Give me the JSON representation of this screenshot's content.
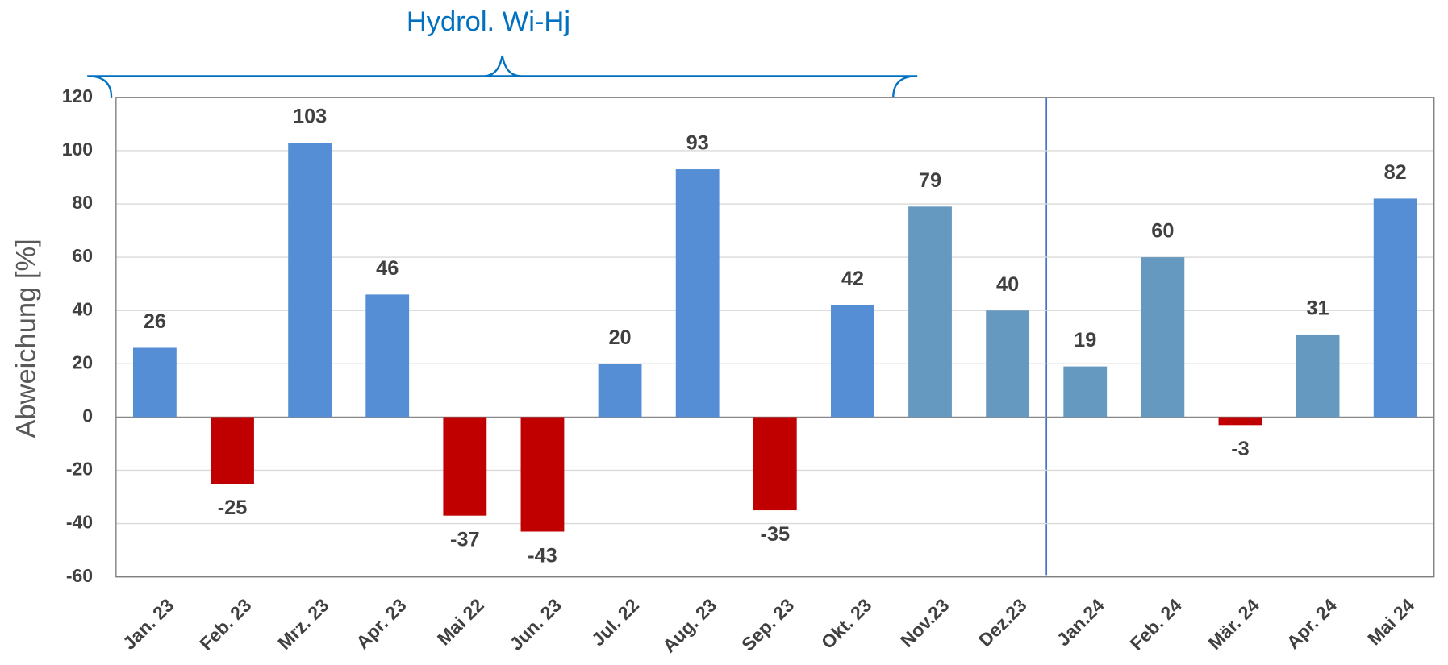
{
  "chart_data": {
    "type": "bar",
    "y_label": "Abweichung  [%]",
    "categories": [
      "Jan. 23",
      "Feb. 23",
      "Mrz. 23",
      "Apr. 23",
      "Mai 22",
      "Jun. 23",
      "Jul. 22",
      "Aug. 23",
      "Sep. 23",
      "Okt. 23",
      "Nov.23",
      "Dez.23",
      "Jan.24",
      "Feb. 24",
      "Mär. 24",
      "Apr. 24",
      "Mai 24"
    ],
    "values": [
      26,
      -25,
      103,
      46,
      -37,
      -43,
      20,
      93,
      -35,
      42,
      79,
      40,
      19,
      60,
      -3,
      31,
      82
    ],
    "colors": [
      "#558ed5",
      "#c00000",
      "#558ed5",
      "#558ed5",
      "#c00000",
      "#c00000",
      "#558ed5",
      "#558ed5",
      "#c00000",
      "#558ed5",
      "#6699bf",
      "#6699bf",
      "#6699bf",
      "#6699bf",
      "#c00000",
      "#6699bf",
      "#558ed5"
    ],
    "ylim": [
      -60,
      120
    ],
    "yticks": [
      -60,
      -40,
      -20,
      0,
      20,
      40,
      60,
      80,
      100,
      120
    ],
    "grid": true,
    "highlight": {
      "from": "Nov.23",
      "to": "Apr.24",
      "divider": "Jan.24",
      "color": "#ffffe3",
      "label_color": "#4f4f2f",
      "annotation": "Hydrol. Wi-Hj",
      "annotation_color": "#0070c0"
    }
  }
}
